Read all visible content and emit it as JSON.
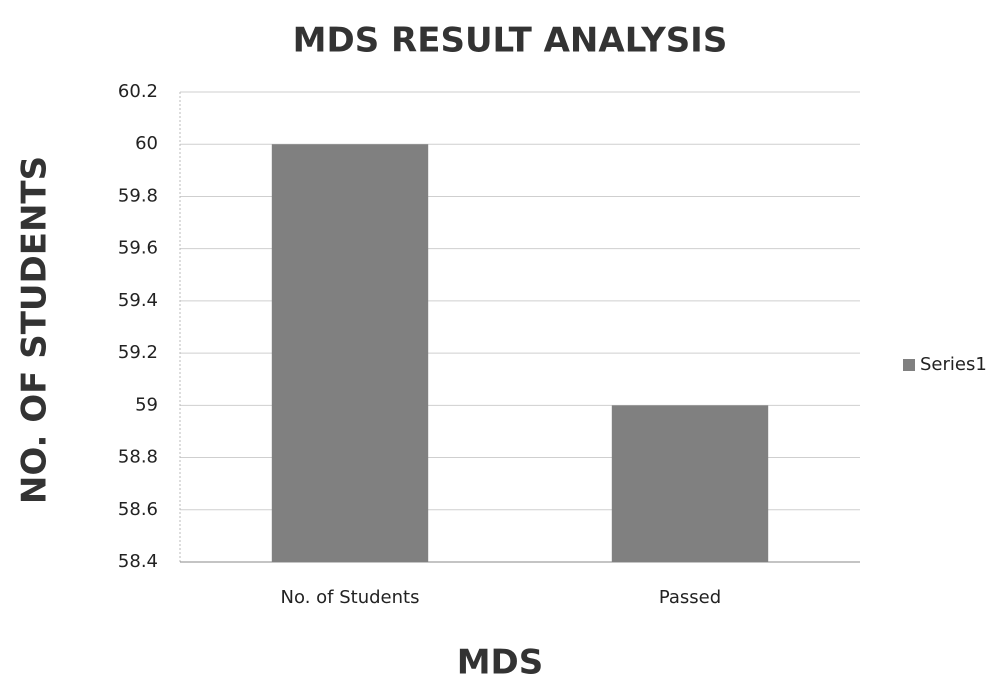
{
  "chart_data": {
    "type": "bar",
    "title": "MDS RESULT ANALYSIS",
    "x_label": "MDS",
    "y_label": "NO. OF STUDENTS",
    "categories": [
      "No. of Students",
      "Passed"
    ],
    "series": [
      {
        "name": "Series1",
        "color": "#808080",
        "values": [
          60,
          59
        ]
      }
    ],
    "ylim": [
      58.4,
      60.2
    ],
    "yticks": [
      58.4,
      58.6,
      58.8,
      59,
      59.2,
      59.4,
      59.6,
      59.8,
      60,
      60.2
    ],
    "grid": true,
    "legend": "right"
  }
}
